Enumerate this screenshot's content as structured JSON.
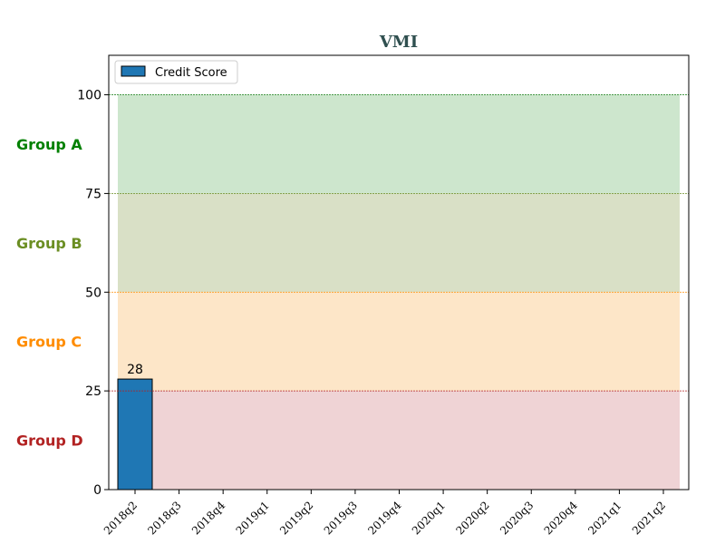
{
  "chart_data": {
    "type": "bar",
    "title": "VMI",
    "xlabel": "",
    "ylabel": "",
    "categories": [
      "2018q2",
      "2018q3",
      "2018q4",
      "2019q1",
      "2019q2",
      "2019q3",
      "2019q4",
      "2020q1",
      "2020q2",
      "2020q3",
      "2020q4",
      "2021q1",
      "2021q2"
    ],
    "series": [
      {
        "name": "Credit Score",
        "values": [
          28,
          null,
          null,
          null,
          null,
          null,
          null,
          null,
          null,
          null,
          null,
          null,
          null
        ],
        "color": "#1f77b4"
      }
    ],
    "data_labels": [
      "28"
    ],
    "ylim": [
      0,
      110
    ],
    "yticks": [
      0,
      25,
      50,
      75,
      100
    ],
    "bands": [
      {
        "label": "Group A",
        "from": 75,
        "to": 100,
        "fill": "#cde6cd",
        "line_color": "#2e8b2e",
        "label_color": "#008000"
      },
      {
        "label": "Group B",
        "from": 50,
        "to": 75,
        "fill": "#d9e0c6",
        "line_color": "#6b8e23",
        "label_color": "#6b8e23"
      },
      {
        "label": "Group C",
        "from": 25,
        "to": 50,
        "fill": "#fde6c8",
        "line_color": "#ff8c00",
        "label_color": "#ff8c00"
      },
      {
        "label": "Group D",
        "from": 0,
        "to": 25,
        "fill": "#efd3d5",
        "line_color": "#b22222",
        "label_color": "#b22222"
      }
    ],
    "legend_position": "top-left",
    "grid": false,
    "title_color": "#2f4f4f"
  }
}
